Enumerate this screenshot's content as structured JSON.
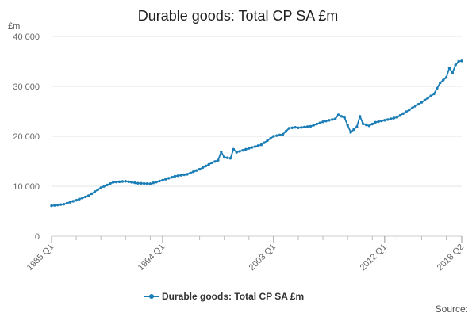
{
  "chart_data": {
    "type": "line",
    "title": "Durable goods: Total CP SA £m",
    "unit_label": "£m",
    "source_label": "Source:",
    "legend_placement": "bottom-center",
    "grid": true,
    "ylim": [
      0,
      40000
    ],
    "y_ticks": [
      {
        "value": 0,
        "label": "0"
      },
      {
        "value": 10000,
        "label": "10 000"
      },
      {
        "value": 20000,
        "label": "20 000"
      },
      {
        "value": 30000,
        "label": "30 000"
      },
      {
        "value": 40000,
        "label": "40 000"
      }
    ],
    "x_range": [
      "1985 Q1",
      "2018 Q2"
    ],
    "x_labels": [
      "1985 Q1",
      "1994 Q1",
      "2003 Q1",
      "2012 Q1",
      "2018 Q2"
    ],
    "series": [
      {
        "name": "Durable goods: Total CP SA £m",
        "color": "#1b7db6",
        "points": [
          [
            "1985 Q1",
            6100
          ],
          [
            "1986 Q1",
            6400
          ],
          [
            "1987 Q1",
            7200
          ],
          [
            "1988 Q1",
            8100
          ],
          [
            "1989 Q1",
            9700
          ],
          [
            "1990 Q1",
            10800
          ],
          [
            "1991 Q1",
            11000
          ],
          [
            "1992 Q1",
            10600
          ],
          [
            "1993 Q1",
            10500
          ],
          [
            "1994 Q1",
            11200
          ],
          [
            "1995 Q1",
            12000
          ],
          [
            "1996 Q1",
            12400
          ],
          [
            "1997 Q1",
            13400
          ],
          [
            "1998 Q1",
            14700
          ],
          [
            "1998 Q3",
            15200
          ],
          [
            "1998 Q4",
            16900
          ],
          [
            "1999 Q1",
            15800
          ],
          [
            "1999 Q3",
            15600
          ],
          [
            "1999 Q4",
            17400
          ],
          [
            "2000 Q1",
            16800
          ],
          [
            "2001 Q1",
            17600
          ],
          [
            "2002 Q1",
            18300
          ],
          [
            "2003 Q1",
            20000
          ],
          [
            "2003 Q4",
            20400
          ],
          [
            "2004 Q2",
            21600
          ],
          [
            "2004 Q4",
            21800
          ],
          [
            "2005 Q1",
            21700
          ],
          [
            "2006 Q1",
            22000
          ],
          [
            "2007 Q1",
            22900
          ],
          [
            "2008 Q1",
            23500
          ],
          [
            "2008 Q2",
            24300
          ],
          [
            "2008 Q4",
            23700
          ],
          [
            "2009 Q2",
            20800
          ],
          [
            "2009 Q4",
            21900
          ],
          [
            "2010 Q1",
            24000
          ],
          [
            "2010 Q2",
            22500
          ],
          [
            "2010 Q4",
            22100
          ],
          [
            "2011 Q2",
            22800
          ],
          [
            "2012 Q1",
            23200
          ],
          [
            "2013 Q1",
            23800
          ],
          [
            "2014 Q1",
            25300
          ],
          [
            "2015 Q1",
            26800
          ],
          [
            "2016 Q1",
            28500
          ],
          [
            "2016 Q3",
            30700
          ],
          [
            "2017 Q1",
            31800
          ],
          [
            "2017 Q2",
            33700
          ],
          [
            "2017 Q3",
            32700
          ],
          [
            "2017 Q4",
            34300
          ],
          [
            "2018 Q1",
            35000
          ],
          [
            "2018 Q2",
            35100
          ]
        ]
      }
    ]
  }
}
